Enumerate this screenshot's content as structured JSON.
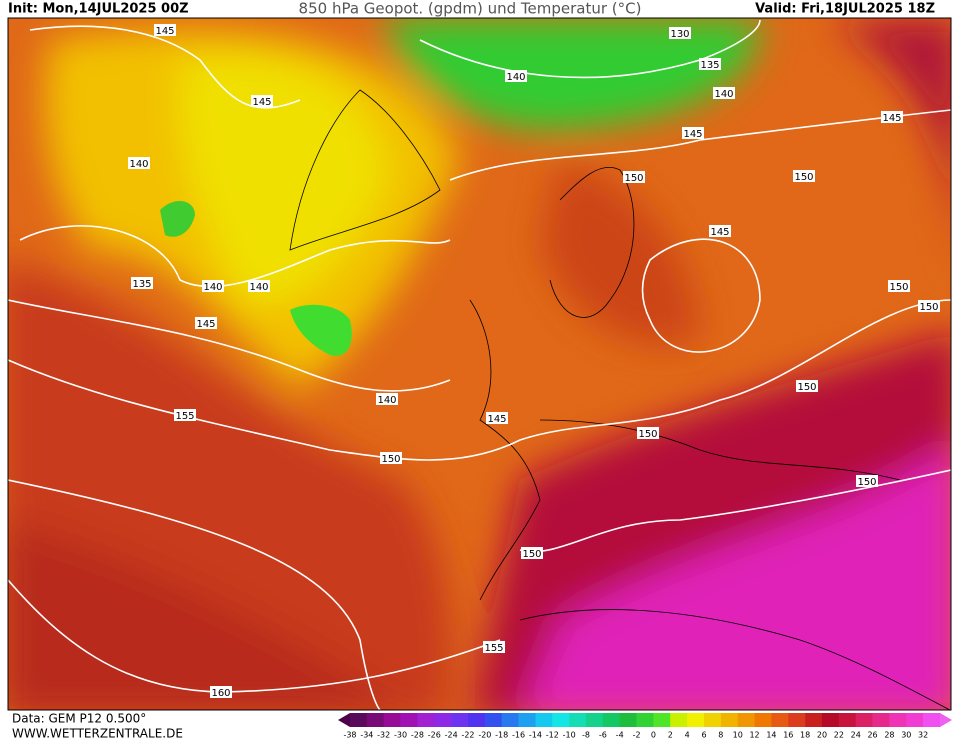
{
  "header": {
    "init": "Init: Mon,14JUL2025 00Z",
    "title": "850 hPa Geopot. (gpdm) und Temperatur (°C)",
    "valid": "Valid: Fri,18JUL2025 18Z"
  },
  "footer": {
    "data_source": "Data: GEM P12 0.500°",
    "website": "WWW.WETTERZENTRALE.DE"
  },
  "colorbar": {
    "labels": [
      "-38",
      "-34",
      "-32",
      "-30",
      "-28",
      "-26",
      "-24",
      "-22",
      "-20",
      "-18",
      "-16",
      "-14",
      "-12",
      "-10",
      "-8",
      "-6",
      "-4",
      "-2",
      "0",
      "2",
      "4",
      "6",
      "8",
      "10",
      "12",
      "14",
      "16",
      "18",
      "20",
      "22",
      "24",
      "26",
      "28",
      "30",
      "32"
    ]
  },
  "contour_labels": [
    "145",
    "130",
    "135",
    "140",
    "140",
    "145",
    "145",
    "145",
    "140",
    "150",
    "150",
    "145",
    "135",
    "140",
    "140",
    "150",
    "150",
    "145",
    "150",
    "140",
    "155",
    "145",
    "150",
    "150",
    "150",
    "150",
    "155",
    "160"
  ]
}
